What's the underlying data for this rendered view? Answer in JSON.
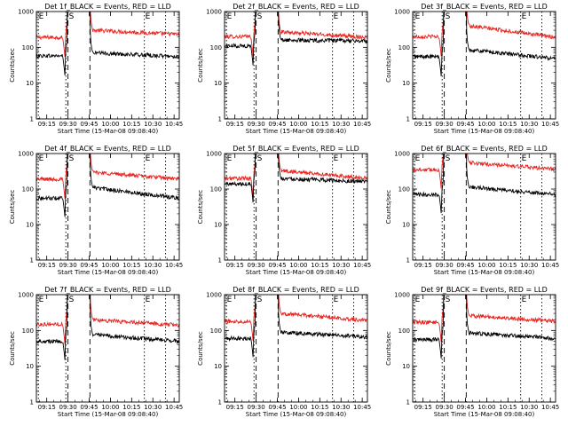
{
  "colors": {
    "background": "#ffffff",
    "axis": "#000000",
    "black_series": "#000000",
    "red_series": "#e8231f"
  },
  "chart_data": [
    {
      "type": "line",
      "title": "Det 1f_BLACK = Events, RED = LLD",
      "xlabel": "Start Time (15-Mar-08 09:08:40)",
      "ylabel": "Counts/sec",
      "yscale": "log",
      "ylim": [
        1,
        1000
      ],
      "xlim_minutes": [
        -1,
        100
      ],
      "xtick_labels": [
        "09:15",
        "09:30",
        "09:45",
        "10:00",
        "10:15",
        "10:30",
        "10:45"
      ],
      "ytick_labels": [
        "1",
        "10",
        "100",
        "1000"
      ],
      "markers": [
        {
          "label": "E",
          "at": "09:08:40"
        },
        {
          "label": "S",
          "at": "09:30"
        },
        {
          "label": "E",
          "at": "10:24"
        }
      ],
      "series": [
        {
          "color": "red",
          "baseline": 190,
          "pre": 180,
          "post": 300,
          "end": 230
        },
        {
          "color": "black",
          "baseline": 58,
          "pre": 55,
          "post": 70,
          "end": 55
        }
      ]
    },
    {
      "type": "line",
      "title": "Det 2f_BLACK = Events, RED = LLD",
      "xlabel": "Start Time (15-Mar-08 09:08:40)",
      "ylabel": "Counts/sec",
      "yscale": "log",
      "ylim": [
        1,
        1000
      ],
      "xlim_minutes": [
        -1,
        100
      ],
      "xtick_labels": [
        "09:15",
        "09:30",
        "09:45",
        "10:00",
        "10:15",
        "10:30",
        "10:45"
      ],
      "ytick_labels": [
        "1",
        "10",
        "100",
        "1000"
      ],
      "markers": [
        {
          "label": "E",
          "at": "09:08:40"
        },
        {
          "label": "S",
          "at": "09:30"
        },
        {
          "label": "E",
          "at": "10:24"
        }
      ],
      "series": [
        {
          "color": "red",
          "baseline": 200,
          "pre": 190,
          "post": 270,
          "end": 190
        },
        {
          "color": "black",
          "baseline": 110,
          "pre": 105,
          "post": 160,
          "end": 150
        }
      ]
    },
    {
      "type": "line",
      "title": "Det 3f_BLACK = Events, RED = LLD",
      "xlabel": "Start Time (15-Mar-08 09:08:40)",
      "ylabel": "Counts/sec",
      "yscale": "log",
      "ylim": [
        1,
        1000
      ],
      "xlim_minutes": [
        -1,
        100
      ],
      "xtick_labels": [
        "09:15",
        "09:30",
        "09:45",
        "10:00",
        "10:15",
        "10:30",
        "10:45"
      ],
      "ytick_labels": [
        "1",
        "10",
        "100",
        "1000"
      ],
      "markers": [
        {
          "label": "E",
          "at": "09:08:40"
        },
        {
          "label": "S",
          "at": "09:30"
        },
        {
          "label": "E",
          "at": "10:24"
        }
      ],
      "series": [
        {
          "color": "red",
          "baseline": 200,
          "pre": 190,
          "post": 400,
          "end": 190
        },
        {
          "color": "black",
          "baseline": 55,
          "pre": 52,
          "post": 85,
          "end": 48
        }
      ]
    },
    {
      "type": "line",
      "title": "Det 4f_BLACK = Events, RED = LLD",
      "xlabel": "Start Time (15-Mar-08 09:08:40)",
      "ylabel": "Counts/sec",
      "yscale": "log",
      "ylim": [
        1,
        1000
      ],
      "xlim_minutes": [
        -1,
        100
      ],
      "xtick_labels": [
        "09:15",
        "09:30",
        "09:45",
        "10:00",
        "10:15",
        "10:30",
        "10:45"
      ],
      "ytick_labels": [
        "1",
        "10",
        "100",
        "1000"
      ],
      "markers": [
        {
          "label": "E",
          "at": "09:08:40"
        },
        {
          "label": "S",
          "at": "09:30"
        },
        {
          "label": "E",
          "at": "10:24"
        }
      ],
      "series": [
        {
          "color": "red",
          "baseline": 190,
          "pre": 180,
          "post": 300,
          "end": 190
        },
        {
          "color": "black",
          "baseline": 55,
          "pre": 55,
          "post": 110,
          "end": 55
        }
      ]
    },
    {
      "type": "line",
      "title": "Det 5f_BLACK = Events, RED = LLD",
      "xlabel": "Start Time (15-Mar-08 09:08:40)",
      "ylabel": "Counts/sec",
      "yscale": "log",
      "ylim": [
        1,
        1000
      ],
      "xlim_minutes": [
        -1,
        100
      ],
      "xtick_labels": [
        "09:15",
        "09:30",
        "09:45",
        "10:00",
        "10:15",
        "10:30",
        "10:45"
      ],
      "ytick_labels": [
        "1",
        "10",
        "100",
        "1000"
      ],
      "markers": [
        {
          "label": "E",
          "at": "09:08:40"
        },
        {
          "label": "S",
          "at": "09:30"
        },
        {
          "label": "E",
          "at": "10:24"
        }
      ],
      "series": [
        {
          "color": "red",
          "baseline": 200,
          "pre": 200,
          "post": 330,
          "end": 200
        },
        {
          "color": "black",
          "baseline": 140,
          "pre": 140,
          "post": 200,
          "end": 160
        }
      ]
    },
    {
      "type": "line",
      "title": "Det 6f_BLACK = Events, RED = LLD",
      "xlabel": "Start Time (15-Mar-08 09:08:40)",
      "ylabel": "Counts/sec",
      "yscale": "log",
      "ylim": [
        1,
        1000
      ],
      "xlim_minutes": [
        -1,
        100
      ],
      "xtick_labels": [
        "09:15",
        "09:30",
        "09:45",
        "10:00",
        "10:15",
        "10:30",
        "10:45"
      ],
      "ytick_labels": [
        "1",
        "10",
        "100",
        "1000"
      ],
      "markers": [
        {
          "label": "E",
          "at": "09:08:40"
        },
        {
          "label": "S",
          "at": "09:30"
        },
        {
          "label": "E",
          "at": "10:24"
        }
      ],
      "series": [
        {
          "color": "red",
          "baseline": 350,
          "pre": 340,
          "post": 550,
          "end": 360
        },
        {
          "color": "black",
          "baseline": 70,
          "pre": 70,
          "post": 115,
          "end": 70
        }
      ]
    },
    {
      "type": "line",
      "title": "Det 7f_BLACK = Events, RED = LLD",
      "xlabel": "Start Time (15-Mar-08 09:08:40)",
      "ylabel": "Counts/sec",
      "yscale": "log",
      "ylim": [
        1,
        1000
      ],
      "xlim_minutes": [
        -1,
        100
      ],
      "xtick_labels": [
        "09:15",
        "09:30",
        "09:45",
        "10:00",
        "10:15",
        "10:30",
        "10:45"
      ],
      "ytick_labels": [
        "1",
        "10",
        "100",
        "1000"
      ],
      "markers": [
        {
          "label": "E",
          "at": "09:08:40"
        },
        {
          "label": "S",
          "at": "09:30"
        },
        {
          "label": "E",
          "at": "10:24"
        }
      ],
      "series": [
        {
          "color": "red",
          "baseline": 150,
          "pre": 140,
          "post": 200,
          "end": 140
        },
        {
          "color": "black",
          "baseline": 50,
          "pre": 50,
          "post": 75,
          "end": 50
        }
      ]
    },
    {
      "type": "line",
      "title": "Det 8f_BLACK = Events, RED = LLD",
      "xlabel": "Start Time (15-Mar-08 09:08:40)",
      "ylabel": "Counts/sec",
      "yscale": "log",
      "ylim": [
        1,
        1000
      ],
      "xlim_minutes": [
        -1,
        100
      ],
      "xtick_labels": [
        "09:15",
        "09:30",
        "09:45",
        "10:00",
        "10:15",
        "10:30",
        "10:45"
      ],
      "ytick_labels": [
        "1",
        "10",
        "100",
        "1000"
      ],
      "markers": [
        {
          "label": "E",
          "at": "09:08:40"
        },
        {
          "label": "S",
          "at": "09:30"
        },
        {
          "label": "E",
          "at": "10:24"
        }
      ],
      "series": [
        {
          "color": "red",
          "baseline": 180,
          "pre": 170,
          "post": 300,
          "end": 190
        },
        {
          "color": "black",
          "baseline": 60,
          "pre": 60,
          "post": 90,
          "end": 65
        }
      ]
    },
    {
      "type": "line",
      "title": "Det 9f_BLACK = Events, RED = LLD",
      "xlabel": "Start Time (15-Mar-08 09:08:40)",
      "ylabel": "Counts/sec",
      "yscale": "log",
      "ylim": [
        1,
        1000
      ],
      "xlim_minutes": [
        -1,
        100
      ],
      "xtick_labels": [
        "09:15",
        "09:30",
        "09:45",
        "10:00",
        "10:15",
        "10:30",
        "10:45"
      ],
      "ytick_labels": [
        "1",
        "10",
        "100",
        "1000"
      ],
      "markers": [
        {
          "label": "E",
          "at": "09:08:40"
        },
        {
          "label": "S",
          "at": "09:30"
        },
        {
          "label": "E",
          "at": "10:24"
        }
      ],
      "series": [
        {
          "color": "red",
          "baseline": 170,
          "pre": 160,
          "post": 260,
          "end": 180
        },
        {
          "color": "black",
          "baseline": 55,
          "pre": 55,
          "post": 85,
          "end": 60
        }
      ]
    }
  ]
}
